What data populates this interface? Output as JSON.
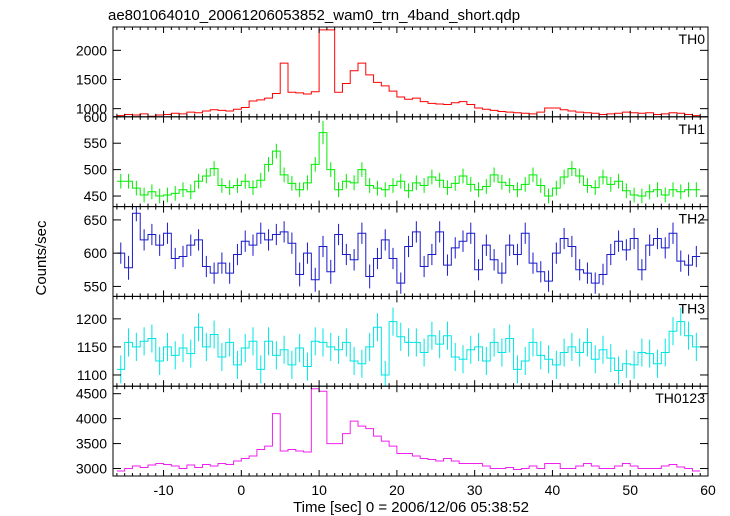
{
  "chart_data": {
    "type": "line",
    "title": "ae801064010_20061206053852_wam0_trn_4band_short.qdp",
    "xlabel": "Time [sec] 0 = 2006/12/06 05:38:52",
    "ylabel": "Counts/sec",
    "xlim": [
      -16.5,
      60
    ],
    "xticks": [
      -10,
      0,
      10,
      20,
      30,
      40,
      50,
      60
    ],
    "bin_width": 1,
    "x": [
      -15.5,
      -14.5,
      -13.5,
      -12.5,
      -11.5,
      -10.5,
      -9.5,
      -8.5,
      -7.5,
      -6.5,
      -5.5,
      -4.5,
      -3.5,
      -2.5,
      -1.5,
      -0.5,
      0.5,
      1.5,
      2.5,
      3.5,
      4.5,
      5.5,
      6.5,
      7.5,
      8.5,
      9.5,
      10.5,
      11.5,
      12.5,
      13.5,
      14.5,
      15.5,
      16.5,
      17.5,
      18.5,
      19.5,
      20.5,
      21.5,
      22.5,
      23.5,
      24.5,
      25.5,
      26.5,
      27.5,
      28.5,
      29.5,
      30.5,
      31.5,
      32.5,
      33.5,
      34.5,
      35.5,
      36.5,
      37.5,
      38.5,
      39.5,
      40.5,
      41.5,
      42.5,
      43.5,
      44.5,
      45.5,
      46.5,
      47.5,
      48.5,
      49.5,
      50.5,
      51.5,
      52.5,
      53.5,
      54.5,
      55.5,
      56.5,
      57.5,
      58.5
    ],
    "series": [
      {
        "name": "TH0",
        "color": "#ff0000",
        "ylim": [
          860,
          2400
        ],
        "yticks": [
          1000,
          1500,
          2000
        ],
        "errors": false,
        "values": [
          880,
          900,
          890,
          910,
          870,
          890,
          900,
          920,
          910,
          940,
          930,
          960,
          980,
          970,
          960,
          990,
          1020,
          1130,
          1150,
          1180,
          1260,
          1780,
          1280,
          1270,
          1250,
          1290,
          2350,
          2350,
          1280,
          1430,
          1650,
          1780,
          1580,
          1450,
          1390,
          1300,
          1200,
          1160,
          1180,
          1120,
          1090,
          1080,
          1070,
          1100,
          1120,
          1070,
          1010,
          990,
          970,
          950,
          940,
          930,
          920,
          910,
          940,
          1010,
          1010,
          980,
          960,
          940,
          930,
          920,
          900,
          910,
          920,
          940,
          930,
          920,
          930,
          900,
          910,
          930,
          920,
          900,
          880
        ],
        "err": []
      },
      {
        "name": "TH1",
        "color": "#00ee00",
        "ylim": [
          430,
          600
        ],
        "yticks": [
          450,
          500,
          550,
          600
        ],
        "errors": true,
        "values": [
          478,
          478,
          465,
          452,
          458,
          450,
          452,
          455,
          462,
          458,
          478,
          488,
          502,
          470,
          466,
          470,
          478,
          466,
          480,
          510,
          535,
          490,
          474,
          462,
          475,
          510,
          570,
          500,
          462,
          478,
          475,
          500,
          470,
          465,
          462,
          470,
          478,
          460,
          475,
          470,
          486,
          480,
          466,
          474,
          488,
          472,
          462,
          468,
          490,
          476,
          470,
          462,
          472,
          490,
          470,
          450,
          465,
          486,
          502,
          488,
          470,
          466,
          486,
          472,
          478,
          460,
          452,
          450,
          458,
          462,
          452,
          462,
          458,
          462,
          462
        ],
        "err": [
          14,
          14,
          14,
          14,
          14,
          14,
          14,
          14,
          14,
          14,
          14,
          14,
          14,
          14,
          14,
          14,
          14,
          14,
          14,
          14,
          14,
          14,
          14,
          14,
          14,
          14,
          22,
          14,
          14,
          14,
          14,
          14,
          14,
          14,
          14,
          14,
          14,
          14,
          14,
          14,
          14,
          14,
          14,
          14,
          14,
          14,
          14,
          14,
          14,
          14,
          14,
          14,
          14,
          14,
          14,
          14,
          14,
          14,
          14,
          14,
          14,
          14,
          14,
          14,
          14,
          14,
          14,
          14,
          14,
          14,
          14,
          14,
          14,
          14,
          14
        ]
      },
      {
        "name": "TH2",
        "color": "#1a1acc",
        "ylim": [
          535,
          670
        ],
        "yticks": [
          550,
          600,
          650
        ],
        "errors": true,
        "values": [
          600,
          578,
          660,
          620,
          628,
          612,
          630,
          592,
          595,
          612,
          620,
          580,
          570,
          585,
          570,
          598,
          618,
          612,
          630,
          620,
          628,
          632,
          615,
          568,
          600,
          560,
          610,
          572,
          628,
          598,
          590,
          630,
          565,
          592,
          620,
          592,
          555,
          610,
          632,
          580,
          598,
          632,
          582,
          608,
          618,
          630,
          575,
          612,
          590,
          570,
          612,
          598,
          630,
          585,
          572,
          558,
          600,
          622,
          610,
          575,
          570,
          555,
          568,
          598,
          618,
          605,
          622,
          575,
          612,
          622,
          608,
          630,
          588,
          582,
          595
        ],
        "err": [
          16,
          18,
          12,
          16,
          16,
          16,
          16,
          16,
          16,
          16,
          16,
          16,
          16,
          16,
          16,
          16,
          16,
          16,
          16,
          16,
          16,
          16,
          16,
          18,
          16,
          18,
          16,
          18,
          16,
          16,
          16,
          16,
          18,
          16,
          16,
          16,
          16,
          16,
          16,
          16,
          16,
          16,
          16,
          16,
          16,
          16,
          16,
          16,
          16,
          16,
          16,
          16,
          16,
          16,
          16,
          16,
          16,
          16,
          16,
          16,
          16,
          16,
          16,
          16,
          16,
          16,
          16,
          16,
          16,
          16,
          16,
          16,
          16,
          16,
          16
        ]
      },
      {
        "name": "TH3",
        "color": "#00e5e5",
        "ylim": [
          1080,
          1240
        ],
        "yticks": [
          1100,
          1150,
          1200
        ],
        "errors": true,
        "values": [
          1110,
          1158,
          1150,
          1160,
          1165,
          1125,
          1150,
          1135,
          1148,
          1138,
          1185,
          1150,
          1172,
          1132,
          1158,
          1118,
          1148,
          1160,
          1110,
          1160,
          1135,
          1145,
          1118,
          1148,
          1115,
          1160,
          1158,
          1150,
          1145,
          1158,
          1125,
          1120,
          1150,
          1185,
          1100,
          1195,
          1168,
          1158,
          1158,
          1140,
          1170,
          1155,
          1170,
          1132,
          1128,
          1145,
          1150,
          1125,
          1158,
          1140,
          1165,
          1110,
          1125,
          1158,
          1135,
          1128,
          1118,
          1140,
          1150,
          1140,
          1158,
          1128,
          1145,
          1130,
          1108,
          1120,
          1118,
          1140,
          1138,
          1120,
          1140,
          1178,
          1195,
          1170,
          1150
        ],
        "err": [
          25,
          25,
          25,
          25,
          25,
          25,
          25,
          25,
          25,
          25,
          25,
          25,
          25,
          25,
          25,
          25,
          25,
          25,
          25,
          25,
          25,
          25,
          25,
          25,
          25,
          25,
          25,
          25,
          25,
          25,
          25,
          25,
          25,
          25,
          25,
          25,
          25,
          25,
          25,
          25,
          25,
          25,
          25,
          25,
          25,
          25,
          25,
          25,
          25,
          25,
          25,
          25,
          25,
          25,
          25,
          25,
          25,
          25,
          25,
          25,
          25,
          25,
          25,
          25,
          25,
          25,
          25,
          25,
          25,
          25,
          25,
          25,
          25,
          25,
          25
        ]
      },
      {
        "name": "TH0123",
        "color": "#ee22ee",
        "ylim": [
          2850,
          4650
        ],
        "yticks": [
          3000,
          3500,
          4000,
          4500
        ],
        "errors": false,
        "values": [
          2950,
          3000,
          3050,
          3020,
          3070,
          3100,
          3080,
          3050,
          3000,
          3070,
          3020,
          3080,
          3050,
          3100,
          3080,
          3150,
          3200,
          3250,
          3380,
          3450,
          4100,
          3350,
          3380,
          3350,
          3330,
          4600,
          4550,
          3500,
          3500,
          3700,
          3950,
          3850,
          3800,
          3650,
          3550,
          3450,
          3300,
          3300,
          3250,
          3200,
          3180,
          3150,
          3200,
          3150,
          3100,
          3100,
          3100,
          3050,
          3000,
          3000,
          3020,
          2980,
          3000,
          3050,
          3000,
          3100,
          3100,
          3000,
          3000,
          3050,
          3100,
          3050,
          3000,
          3000,
          3050,
          3100,
          3050,
          3000,
          3000,
          3000,
          3050,
          3080,
          3030,
          3000,
          2950
        ],
        "err": []
      }
    ]
  }
}
